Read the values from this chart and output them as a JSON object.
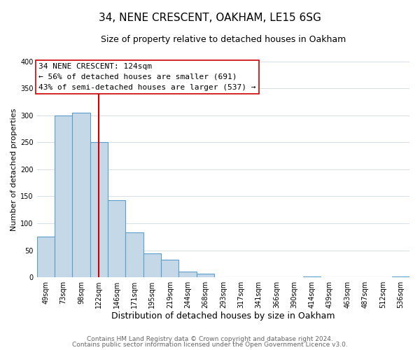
{
  "title": "34, NENE CRESCENT, OAKHAM, LE15 6SG",
  "subtitle": "Size of property relative to detached houses in Oakham",
  "xlabel": "Distribution of detached houses by size in Oakham",
  "ylabel": "Number of detached properties",
  "bin_labels": [
    "49sqm",
    "73sqm",
    "98sqm",
    "122sqm",
    "146sqm",
    "171sqm",
    "195sqm",
    "219sqm",
    "244sqm",
    "268sqm",
    "293sqm",
    "317sqm",
    "341sqm",
    "366sqm",
    "390sqm",
    "414sqm",
    "439sqm",
    "463sqm",
    "487sqm",
    "512sqm",
    "536sqm"
  ],
  "bar_heights": [
    75,
    300,
    305,
    250,
    143,
    83,
    44,
    32,
    10,
    6,
    0,
    0,
    0,
    0,
    0,
    2,
    0,
    0,
    0,
    0,
    2
  ],
  "bar_color": "#c5d8e8",
  "bar_edge_color": "#5a9ec9",
  "vline_x": 3,
  "vline_color": "#cc0000",
  "ylim": [
    0,
    400
  ],
  "yticks": [
    0,
    50,
    100,
    150,
    200,
    250,
    300,
    350,
    400
  ],
  "annotation_text": "34 NENE CRESCENT: 124sqm\n← 56% of detached houses are smaller (691)\n43% of semi-detached houses are larger (537) →",
  "annotation_box_color": "#ffffff",
  "annotation_box_edge": "#cc0000",
  "footer_line1": "Contains HM Land Registry data © Crown copyright and database right 2024.",
  "footer_line2": "Contains public sector information licensed under the Open Government Licence v3.0.",
  "title_fontsize": 11,
  "subtitle_fontsize": 9,
  "xlabel_fontsize": 9,
  "ylabel_fontsize": 8,
  "tick_fontsize": 7,
  "annotation_fontsize": 8,
  "footer_fontsize": 6.5
}
